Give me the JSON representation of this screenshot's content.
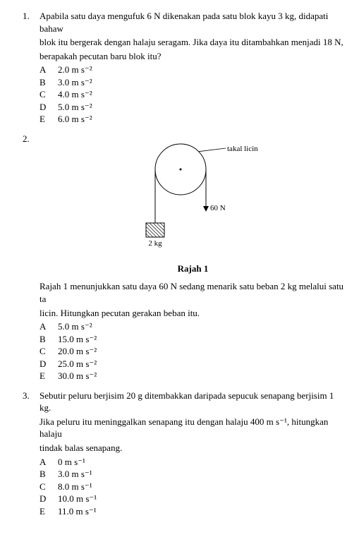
{
  "q1": {
    "num": "1.",
    "stem_l1": "Apabila satu daya mengufuk 6 N dikenakan pada satu blok kayu 3 kg, didapati bahaw",
    "stem_l2": "blok itu bergerak dengan halaju seragam. Jika daya itu ditambahkan menjadi 18 N,",
    "stem_l3": "berapakah pecutan baru blok itu?",
    "choices": [
      {
        "l": "A",
        "t": "2.0  m s⁻²"
      },
      {
        "l": "B",
        "t": "3.0  m s⁻²"
      },
      {
        "l": "C",
        "t": "4.0  m s⁻²"
      },
      {
        "l": "D",
        "t": "5.0  m s⁻²"
      },
      {
        "l": "E",
        "t": "6.0  m s⁻²"
      }
    ]
  },
  "q2": {
    "num": "2.",
    "fig": {
      "type": "diagram-pulley",
      "pulley_label": "takal licin",
      "force_label": "60 N",
      "mass_label": "2 kg",
      "caption": "Rajah 1",
      "stroke": "#000000",
      "bg": "#ffffff",
      "circle_r": 36,
      "force_arrow_len": 52,
      "mass_w": 26,
      "mass_h": 20,
      "block_hatch_spacing": 5,
      "font_size": 11
    },
    "stem_l1": "Rajah 1 menunjukkan satu daya 60 N sedang menarik satu beban 2 kg melalui satu ta",
    "stem_l2": "licin. Hitungkan pecutan gerakan beban itu.",
    "choices": [
      {
        "l": "A",
        "t": "5.0  m s⁻²"
      },
      {
        "l": "B",
        "t": "15.0  m s⁻²"
      },
      {
        "l": "C",
        "t": "20.0  m s⁻²"
      },
      {
        "l": "D",
        "t": "25.0  m s⁻²"
      },
      {
        "l": "E",
        "t": "30.0  m s⁻²"
      }
    ]
  },
  "q3": {
    "num": "3.",
    "stem_l1": "Sebutir peluru berjisim 20 g ditembakkan daripada sepucuk senapang berjisim 1 kg.",
    "stem_l2": "Jika peluru itu meninggalkan senapang itu dengan halaju 400 m s⁻¹, hitungkan halaju",
    "stem_l3": "tindak balas senapang.",
    "choices": [
      {
        "l": "A",
        "t": "0 m s⁻¹"
      },
      {
        "l": "B",
        "t": "3.0  m s⁻¹"
      },
      {
        "l": "C",
        "t": "8.0 m s⁻¹"
      },
      {
        "l": "D",
        "t": "10.0  m s⁻¹"
      },
      {
        "l": "E",
        "t": "11.0  m s⁻¹"
      }
    ]
  }
}
